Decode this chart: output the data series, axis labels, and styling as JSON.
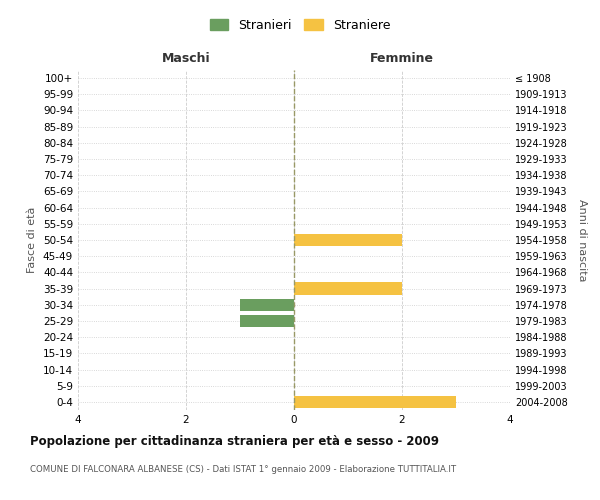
{
  "age_groups": [
    "100+",
    "95-99",
    "90-94",
    "85-89",
    "80-84",
    "75-79",
    "70-74",
    "65-69",
    "60-64",
    "55-59",
    "50-54",
    "45-49",
    "40-44",
    "35-39",
    "30-34",
    "25-29",
    "20-24",
    "15-19",
    "10-14",
    "5-9",
    "0-4"
  ],
  "birth_years": [
    "≤ 1908",
    "1909-1913",
    "1914-1918",
    "1919-1923",
    "1924-1928",
    "1929-1933",
    "1934-1938",
    "1939-1943",
    "1944-1948",
    "1949-1953",
    "1954-1958",
    "1959-1963",
    "1964-1968",
    "1969-1973",
    "1974-1978",
    "1979-1983",
    "1984-1988",
    "1989-1993",
    "1994-1998",
    "1999-2003",
    "2004-2008"
  ],
  "males": [
    0,
    0,
    0,
    0,
    0,
    0,
    0,
    0,
    0,
    0,
    0,
    0,
    0,
    0,
    1,
    1,
    0,
    0,
    0,
    0,
    0
  ],
  "females": [
    0,
    0,
    0,
    0,
    0,
    0,
    0,
    0,
    0,
    0,
    2,
    0,
    0,
    2,
    0,
    0,
    0,
    0,
    0,
    0,
    3
  ],
  "male_color": "#6a9e5f",
  "female_color": "#f5c242",
  "grid_color": "#cccccc",
  "center_line_color": "#999966",
  "title": "Popolazione per cittadinanza straniera per età e sesso - 2009",
  "subtitle": "COMUNE DI FALCONARA ALBANESE (CS) - Dati ISTAT 1° gennaio 2009 - Elaborazione TUTTITALIA.IT",
  "xlabel_left": "Maschi",
  "xlabel_right": "Femmine",
  "ylabel_left": "Fasce di età",
  "ylabel_right": "Anni di nascita",
  "legend_male": "Stranieri",
  "legend_female": "Straniere",
  "xlim": 4,
  "background_color": "#ffffff"
}
